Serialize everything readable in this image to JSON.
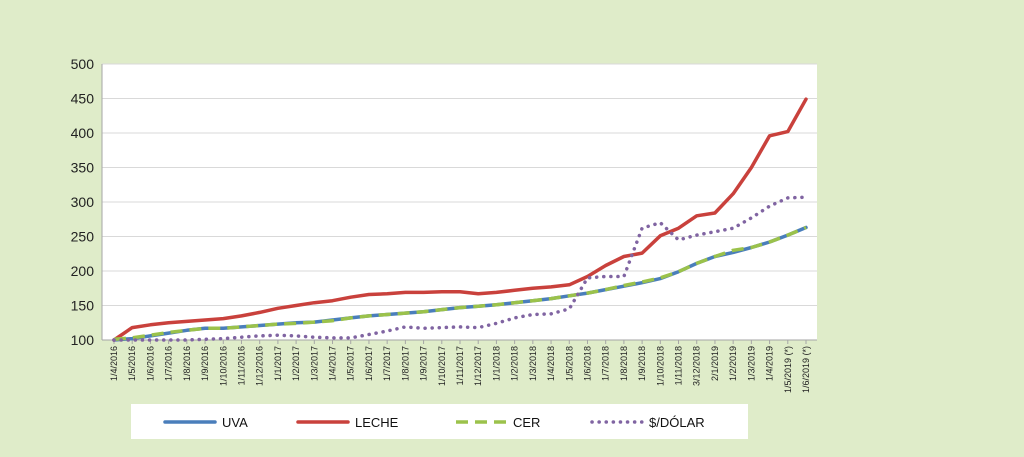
{
  "colors": {
    "background": "#dfecc9",
    "plot_background": "#ffffff",
    "grid": "#d9d9d9",
    "uva": "#4a7ebb",
    "leche": "#c9413c",
    "cer": "#9bc24b",
    "dolar": "#8064a2"
  },
  "chart_data": {
    "type": "line",
    "title": "",
    "xlabel": "",
    "ylabel": "",
    "ylim": [
      100,
      500
    ],
    "yticks": [
      "100",
      "150",
      "200",
      "250",
      "300",
      "350",
      "400",
      "450",
      "500"
    ],
    "grid": true,
    "legend_position": "bottom",
    "categories": [
      "1/4/2016",
      "1/5/2016",
      "1/6/2016",
      "1/7/2016",
      "1/8/2016",
      "1/9/2016",
      "1/10/2016",
      "1/11/2016",
      "1/12/2016",
      "1/1/2017",
      "1/2/2017",
      "1/3/2017",
      "1/4/2017",
      "1/5/2017",
      "1/6/2017",
      "1/7/2017",
      "1/8/2017",
      "1/9/2017",
      "1/10/2017",
      "1/11/2017",
      "1/12/2017",
      "1/1/2018",
      "1/2/2018",
      "1/3/2018",
      "1/4/2018",
      "1/5/2018",
      "1/6/2018",
      "1/7/2018",
      "1/8/2018",
      "1/9/2018",
      "1/10/2018",
      "1/11/2018",
      "3/12/2018",
      "2/1/2019",
      "1/2/2019",
      "1/3/2019",
      "1/4/2019",
      "1/5/2019 (*)",
      "1/6/2019 (*)"
    ],
    "series": [
      {
        "name": "UVA",
        "style": "solid",
        "values": [
          100,
          102,
          106,
          110,
          114,
          117,
          117,
          119,
          121,
          123,
          125,
          126,
          129,
          132,
          135,
          137,
          139,
          141,
          144,
          147,
          149,
          151,
          154,
          157,
          160,
          164,
          168,
          173,
          178,
          183,
          189,
          199,
          211,
          221,
          227,
          234,
          242,
          252,
          263
        ]
      },
      {
        "name": "LECHE",
        "style": "solid",
        "values": [
          100,
          118,
          122,
          125,
          127,
          129,
          131,
          135,
          140,
          146,
          150,
          154,
          157,
          162,
          166,
          167,
          169,
          169,
          170,
          170,
          167,
          169,
          172,
          175,
          177,
          180,
          192,
          208,
          221,
          226,
          251,
          262,
          280,
          284,
          312,
          350,
          396,
          402,
          449
        ]
      },
      {
        "name": "CER",
        "style": "dashed",
        "values": [
          101,
          103,
          107,
          111,
          114,
          117,
          117,
          119,
          121,
          123,
          124,
          126,
          128,
          132,
          135,
          137,
          139,
          141,
          144,
          147,
          149,
          151,
          154,
          157,
          160,
          164,
          168,
          173,
          179,
          184,
          190,
          199,
          211,
          221,
          230,
          234,
          242,
          252,
          263
        ]
      },
      {
        "name": "$/DÓLAR",
        "style": "dotted",
        "values": [
          97,
          99,
          100,
          100,
          100,
          101,
          102,
          104,
          106,
          107,
          106,
          104,
          103,
          103,
          108,
          113,
          119,
          117,
          118,
          119,
          118,
          124,
          132,
          137,
          138,
          145,
          190,
          192,
          192,
          262,
          270,
          245,
          252,
          257,
          262,
          277,
          294,
          306,
          307
        ]
      }
    ]
  }
}
